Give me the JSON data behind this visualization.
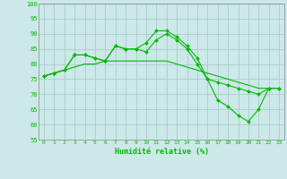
{
  "xlabel": "Humidité relative (%)",
  "background_color": "#cce8e8",
  "grid_color": "#aacccc",
  "line_color": "#00bb00",
  "x_ticks": [
    0,
    1,
    2,
    3,
    4,
    5,
    6,
    7,
    8,
    9,
    10,
    11,
    12,
    13,
    14,
    15,
    16,
    17,
    18,
    19,
    20,
    21,
    22,
    23
  ],
  "ylim": [
    55,
    100
  ],
  "yticks": [
    55,
    60,
    65,
    70,
    75,
    80,
    85,
    90,
    95,
    100
  ],
  "series1": [
    76,
    77,
    78,
    83,
    83,
    82,
    81,
    86,
    85,
    85,
    87,
    91,
    91,
    89,
    86,
    82,
    75,
    68,
    66,
    63,
    61,
    65,
    72,
    72
  ],
  "series2": [
    76,
    77,
    78,
    83,
    83,
    82,
    81,
    86,
    85,
    85,
    84,
    88,
    90,
    88,
    85,
    80,
    75,
    74,
    73,
    72,
    71,
    70,
    72,
    72
  ],
  "series3": [
    76,
    77,
    78,
    79,
    80,
    80,
    81,
    81,
    81,
    81,
    81,
    81,
    81,
    80,
    79,
    78,
    77,
    76,
    75,
    74,
    73,
    72,
    72,
    72
  ]
}
